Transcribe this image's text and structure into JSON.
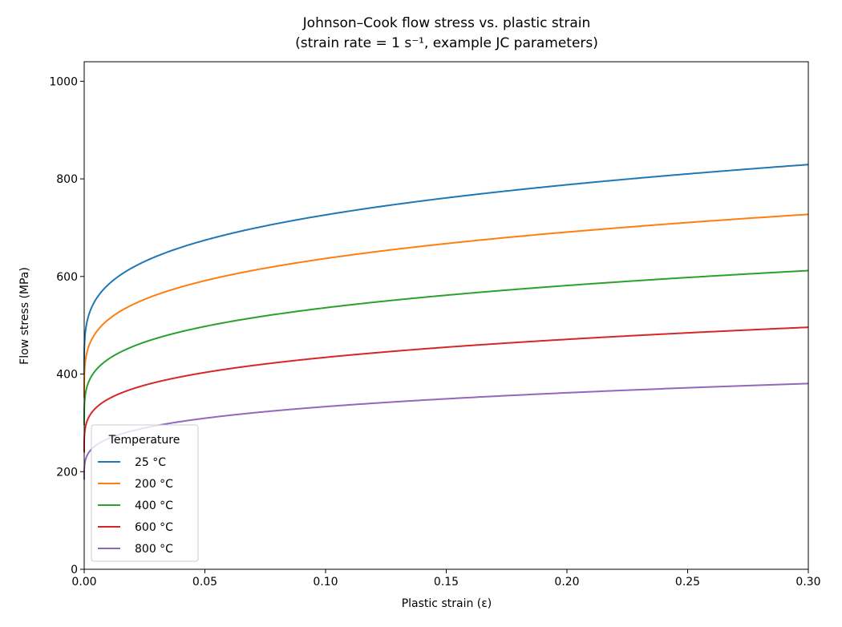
{
  "chart_data": {
    "type": "line",
    "title": "Johnson–Cook flow stress vs. plastic strain",
    "subtitle": "(strain rate = 1 s⁻¹, example JC parameters)",
    "xlabel": "Plastic strain (ε)",
    "ylabel": "Flow stress (MPa)",
    "xlim": [
      0,
      0.3
    ],
    "ylim": [
      0,
      1040
    ],
    "xticks": [
      0,
      0.05,
      0.1,
      0.15,
      0.2,
      0.25,
      0.3
    ],
    "xtick_labels": [
      "0.00",
      "0.05",
      "0.10",
      "0.15",
      "0.20",
      "0.25",
      "0.30"
    ],
    "yticks": [
      0,
      200,
      400,
      600,
      800,
      1000
    ],
    "ytick_labels": [
      "0",
      "200",
      "400",
      "600",
      "800",
      "1000"
    ],
    "grid": false,
    "legend": {
      "title": "Temperature",
      "placement": "lower-left"
    },
    "model": {
      "A": 400,
      "B": 580,
      "n": 0.25
    },
    "series": [
      {
        "name": "25 °C",
        "color": "#1f77b4",
        "scale": 1.0,
        "points": [
          [
            0,
            400
          ],
          [
            0.001,
            503
          ],
          [
            0.005,
            554
          ],
          [
            0.01,
            583
          ],
          [
            0.02,
            618
          ],
          [
            0.05,
            674
          ],
          [
            0.1,
            726
          ],
          [
            0.15,
            762
          ],
          [
            0.2,
            790
          ],
          [
            0.25,
            813
          ],
          [
            0.3,
            834
          ]
        ]
      },
      {
        "name": "200 °C",
        "color": "#ff7f0e",
        "scale": 0.877,
        "points": [
          [
            0,
            351
          ],
          [
            0.001,
            441
          ],
          [
            0.005,
            486
          ],
          [
            0.01,
            511
          ],
          [
            0.02,
            542
          ],
          [
            0.05,
            591
          ],
          [
            0.1,
            637
          ],
          [
            0.15,
            668
          ],
          [
            0.2,
            693
          ],
          [
            0.25,
            713
          ],
          [
            0.3,
            731
          ]
        ]
      },
      {
        "name": "400 °C",
        "color": "#2ca02c",
        "scale": 0.738,
        "points": [
          [
            0,
            295
          ],
          [
            0.001,
            371
          ],
          [
            0.005,
            409
          ],
          [
            0.01,
            430
          ],
          [
            0.02,
            456
          ],
          [
            0.05,
            497
          ],
          [
            0.1,
            536
          ],
          [
            0.15,
            562
          ],
          [
            0.2,
            583
          ],
          [
            0.25,
            600
          ],
          [
            0.3,
            615
          ]
        ]
      },
      {
        "name": "600 °C",
        "color": "#d62728",
        "scale": 0.598,
        "points": [
          [
            0,
            239
          ],
          [
            0.001,
            301
          ],
          [
            0.005,
            331
          ],
          [
            0.01,
            349
          ],
          [
            0.02,
            370
          ],
          [
            0.05,
            403
          ],
          [
            0.1,
            434
          ],
          [
            0.15,
            456
          ],
          [
            0.2,
            472
          ],
          [
            0.25,
            486
          ],
          [
            0.3,
            499
          ]
        ]
      },
      {
        "name": "800 °C",
        "color": "#9467bd",
        "scale": 0.459,
        "points": [
          [
            0,
            184
          ],
          [
            0.001,
            231
          ],
          [
            0.005,
            254
          ],
          [
            0.01,
            268
          ],
          [
            0.02,
            284
          ],
          [
            0.05,
            309
          ],
          [
            0.1,
            333
          ],
          [
            0.15,
            350
          ],
          [
            0.2,
            363
          ],
          [
            0.25,
            373
          ],
          [
            0.3,
            383
          ]
        ]
      }
    ]
  }
}
